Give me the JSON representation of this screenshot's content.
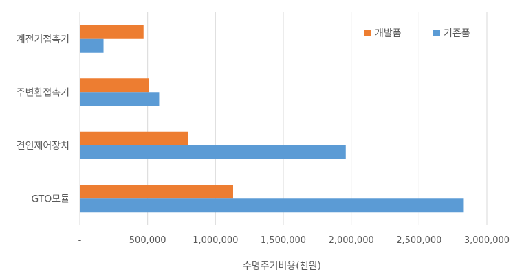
{
  "chart_data": {
    "type": "bar",
    "orientation": "horizontal",
    "categories": [
      "GTO모듈",
      "견인제어장치",
      "주변환접촉기",
      "계전기접촉기"
    ],
    "series": [
      {
        "name": "개발품",
        "color": "#ED7D31",
        "values": [
          1130000,
          800000,
          510000,
          470000
        ]
      },
      {
        "name": "기존품",
        "color": "#5B9BD5",
        "values": [
          2830000,
          1960000,
          585000,
          175000
        ]
      }
    ],
    "xlabel": "수명주기비용(천원)",
    "ylabel": "",
    "xlim": [
      0,
      3000000
    ],
    "xticks": [
      0,
      500000,
      1000000,
      1500000,
      2000000,
      2500000,
      3000000
    ],
    "xtick_labels": [
      "-",
      "500,000",
      "1,000,000",
      "1,500,000",
      "2,000,000",
      "2,500,000",
      "3,000,000"
    ],
    "grid": "vertical",
    "legend_position": "top-right",
    "gridline_color": "#D9D9D9"
  }
}
